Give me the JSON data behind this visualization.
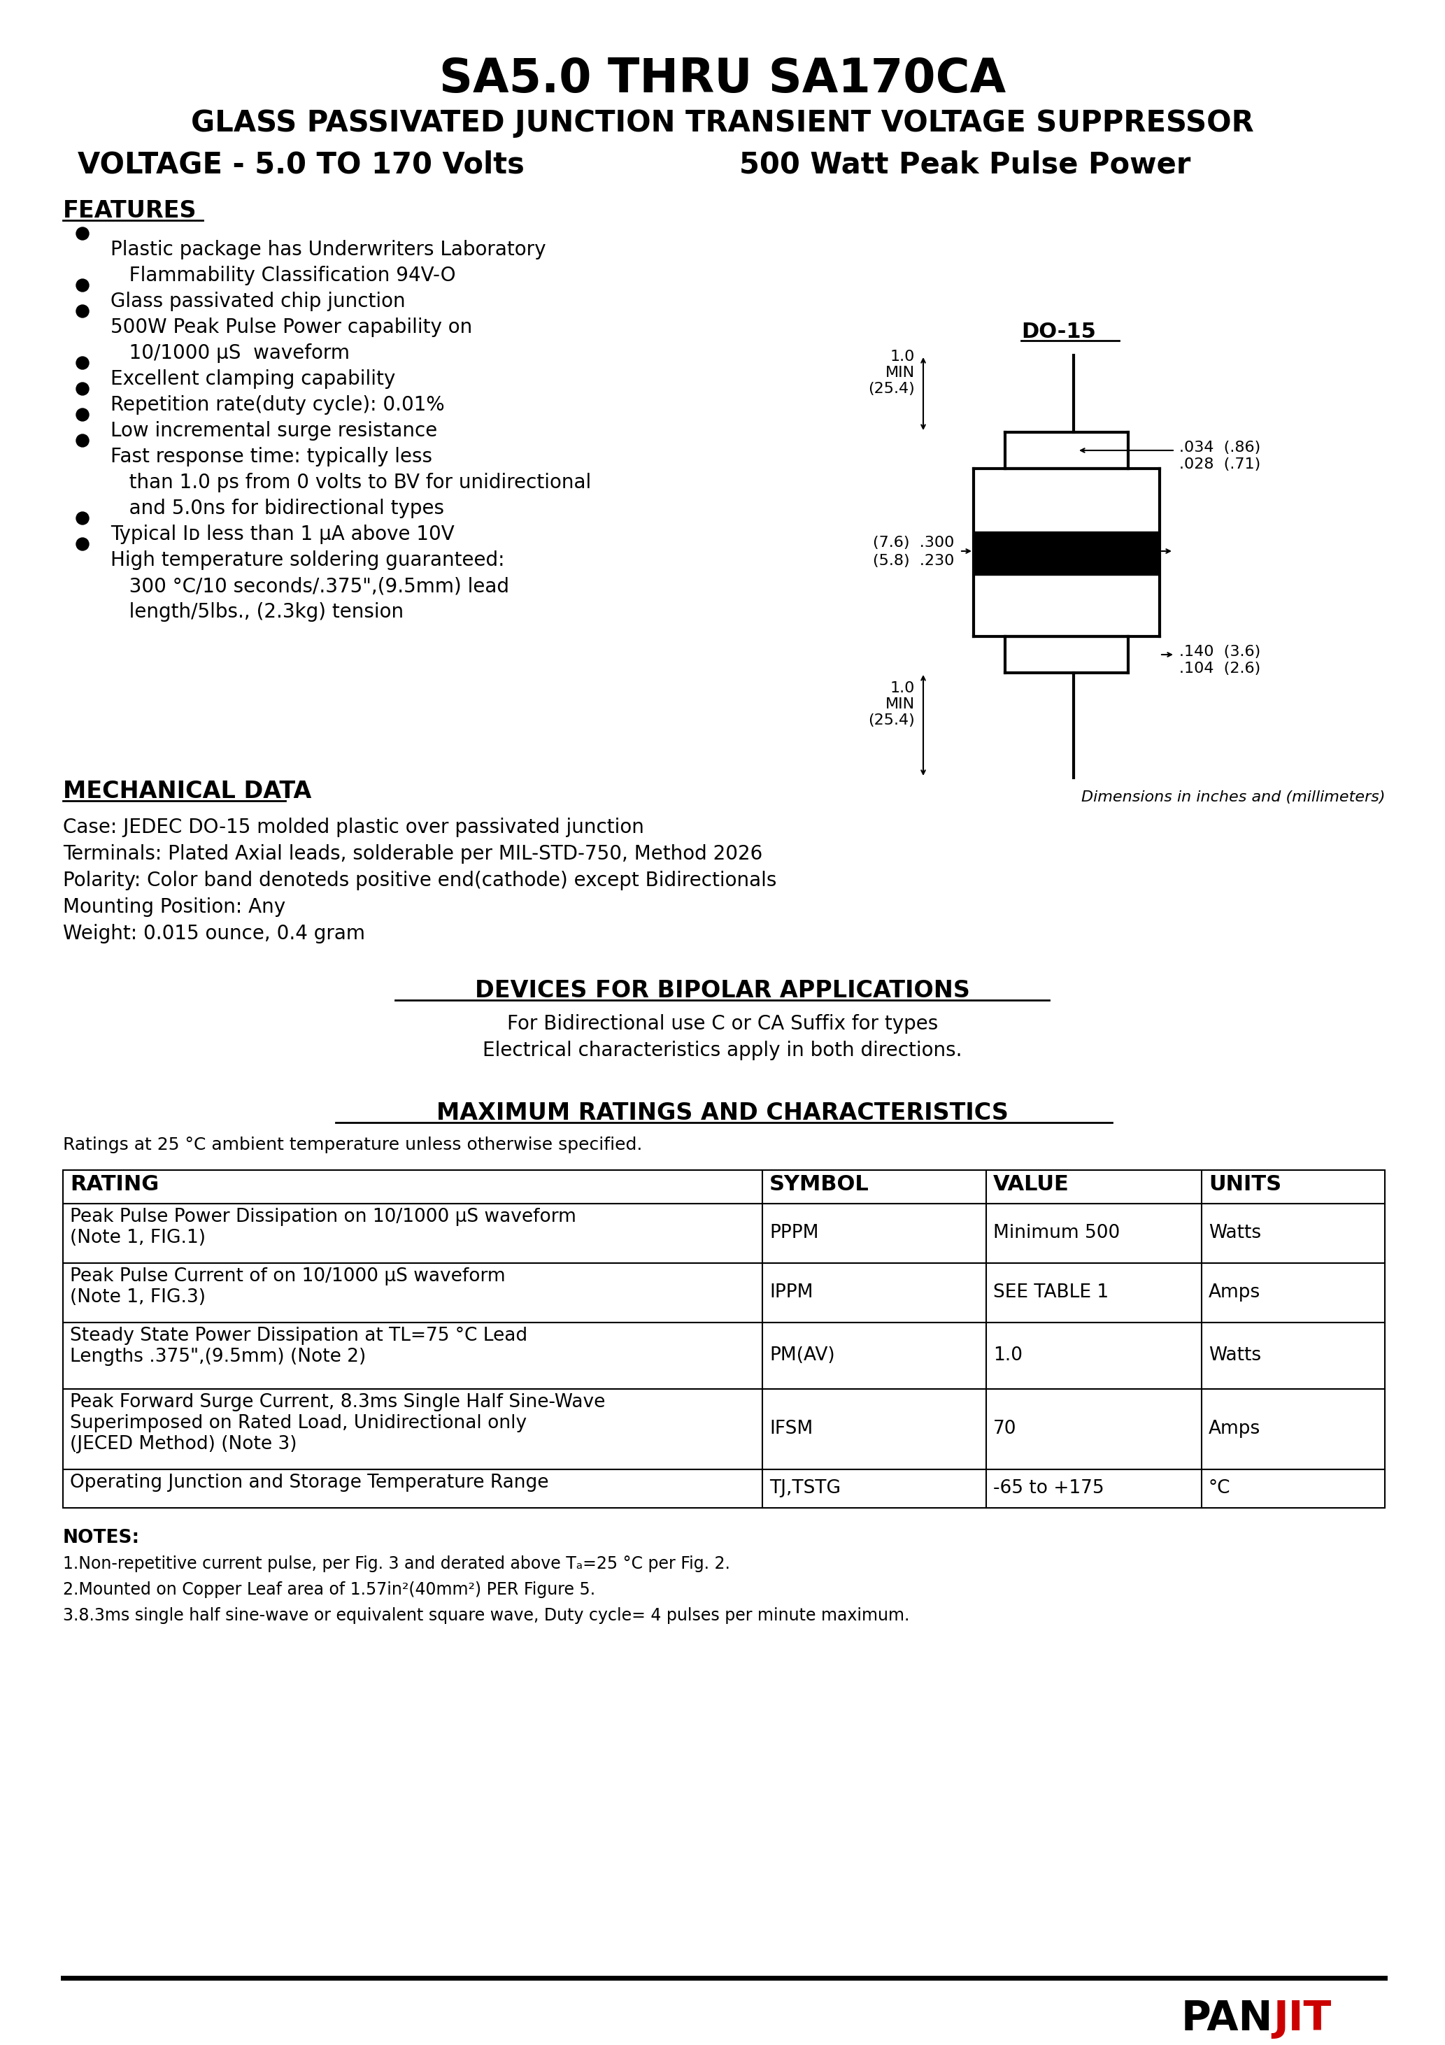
{
  "title1": "SA5.0 THRU SA170CA",
  "title2": "GLASS PASSIVATED JUNCTION TRANSIENT VOLTAGE SUPPRESSOR",
  "title3_left": "VOLTAGE - 5.0 TO 170 Volts",
  "title3_right": "500 Watt Peak Pulse Power",
  "features_title": "FEATURES",
  "mechanical_title": "MECHANICAL DATA",
  "mechanical_lines": [
    "Case: JEDEC DO-15 molded plastic over passivated junction",
    "Terminals: Plated Axial leads, solderable per MIL-STD-750, Method 2026",
    "Polarity: Color band denoteds positive end(cathode) except Bidirectionals",
    "Mounting Position: Any",
    "Weight: 0.015 ounce, 0.4 gram"
  ],
  "bipolar_title": "DEVICES FOR BIPOLAR APPLICATIONS",
  "bipolar_line1": "For Bidirectional use C or CA Suffix for types",
  "bipolar_line2": "Electrical characteristics apply in both directions.",
  "max_ratings_title": "MAXIMUM RATINGS AND CHARACTERISTICS",
  "ratings_note": "Ratings at 25 °C ambient temperature unless otherwise specified.",
  "table_headers": [
    "RATING",
    "SYMBOL",
    "VALUE",
    "UNITS"
  ],
  "do15_label": "DO-15",
  "dim_note": "Dimensions in inches and (millimeters)",
  "notes_title": "NOTES:",
  "notes": [
    "1.Non-repetitive current pulse, per Fig. 3 and derated above Tₐ=25 °C per Fig. 2.",
    "2.Mounted on Copper Leaf area of 1.57in²(40mm²) PER Figure 5.",
    "3.8.3ms single half sine-wave or equivalent square wave, Duty cycle= 4 pulses per minute maximum."
  ],
  "brand_pan": "PAN",
  "brand_jit": "JIT",
  "bg_color": "#ffffff",
  "feature_lines": [
    [
      true,
      "Plastic package has Underwriters Laboratory"
    ],
    [
      false,
      "   Flammability Classification 94V-O"
    ],
    [
      true,
      "Glass passivated chip junction"
    ],
    [
      true,
      "500W Peak Pulse Power capability on"
    ],
    [
      false,
      "   10/1000 μS  waveform"
    ],
    [
      true,
      "Excellent clamping capability"
    ],
    [
      true,
      "Repetition rate(duty cycle): 0.01%"
    ],
    [
      true,
      "Low incremental surge resistance"
    ],
    [
      true,
      "Fast response time: typically less"
    ],
    [
      false,
      "   than 1.0 ps from 0 volts to BV for unidirectional"
    ],
    [
      false,
      "   and 5.0ns for bidirectional types"
    ],
    [
      true,
      "Typical Iᴅ less than 1 μA above 10V"
    ],
    [
      true,
      "High temperature soldering guaranteed:"
    ],
    [
      false,
      "   300 °C/10 seconds/.375\",(9.5mm) lead"
    ],
    [
      false,
      "   length/5lbs., (2.3kg) tension"
    ]
  ],
  "row_data": [
    [
      "Peak Pulse Power Dissipation on 10/1000 μS waveform\n(Note 1, FIG.1)",
      "PPPM",
      "Minimum 500",
      "Watts",
      85
    ],
    [
      "Peak Pulse Current of on 10/1000 μS waveform\n(Note 1, FIG.3)",
      "IPPM",
      "SEE TABLE 1",
      "Amps",
      85
    ],
    [
      "Steady State Power Dissipation at TL=75 °C Lead\nLengths .375\",(9.5mm) (Note 2)",
      "PM(AV)",
      "1.0",
      "Watts",
      95
    ],
    [
      "Peak Forward Surge Current, 8.3ms Single Half Sine-Wave\nSuperimposed on Rated Load, Unidirectional only\n(JECED Method) (Note 3)",
      "IFSM",
      "70",
      "Amps",
      115
    ],
    [
      "Operating Junction and Storage Temperature Range",
      "TJ,TSTG",
      "-65 to +175",
      "°C",
      55
    ]
  ]
}
